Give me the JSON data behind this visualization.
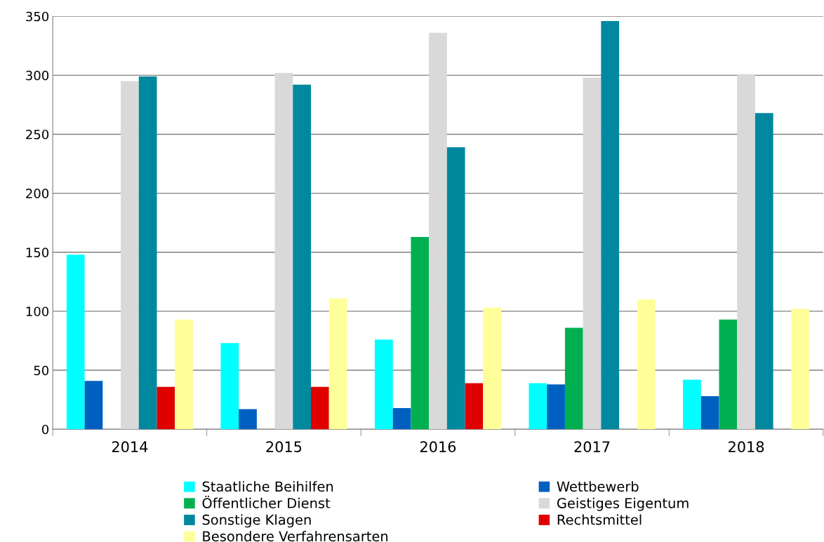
{
  "chart_data": {
    "type": "bar",
    "categories": [
      "2014",
      "2015",
      "2016",
      "2017",
      "2018"
    ],
    "series": [
      {
        "name": "Staatliche Beihilfen",
        "color": "#00ffff",
        "values": [
          148,
          73,
          76,
          39,
          42
        ]
      },
      {
        "name": "Wettbewerb",
        "color": "#0060c0",
        "values": [
          41,
          17,
          18,
          38,
          28
        ]
      },
      {
        "name": "Öffentlicher Dienst",
        "color": "#00b050",
        "values": [
          null,
          null,
          163,
          86,
          93
        ]
      },
      {
        "name": "Geistiges Eigentum",
        "color": "#d9d9d9",
        "values": [
          295,
          302,
          336,
          298,
          301
        ]
      },
      {
        "name": "Sonstige Klagen",
        "color": "#00889f",
        "values": [
          299,
          292,
          239,
          346,
          268
        ]
      },
      {
        "name": "Rechtsmittel",
        "color": "#e00000",
        "values": [
          36,
          36,
          39,
          null,
          null
        ]
      },
      {
        "name": "Besondere Verfahrensarten",
        "color": "#ffff99",
        "values": [
          93,
          111,
          103,
          110,
          102
        ]
      }
    ],
    "ylim": [
      0,
      350
    ],
    "yticks": [
      0,
      50,
      100,
      150,
      200,
      250,
      300,
      350
    ],
    "grid": "y",
    "legend": "bottom"
  }
}
